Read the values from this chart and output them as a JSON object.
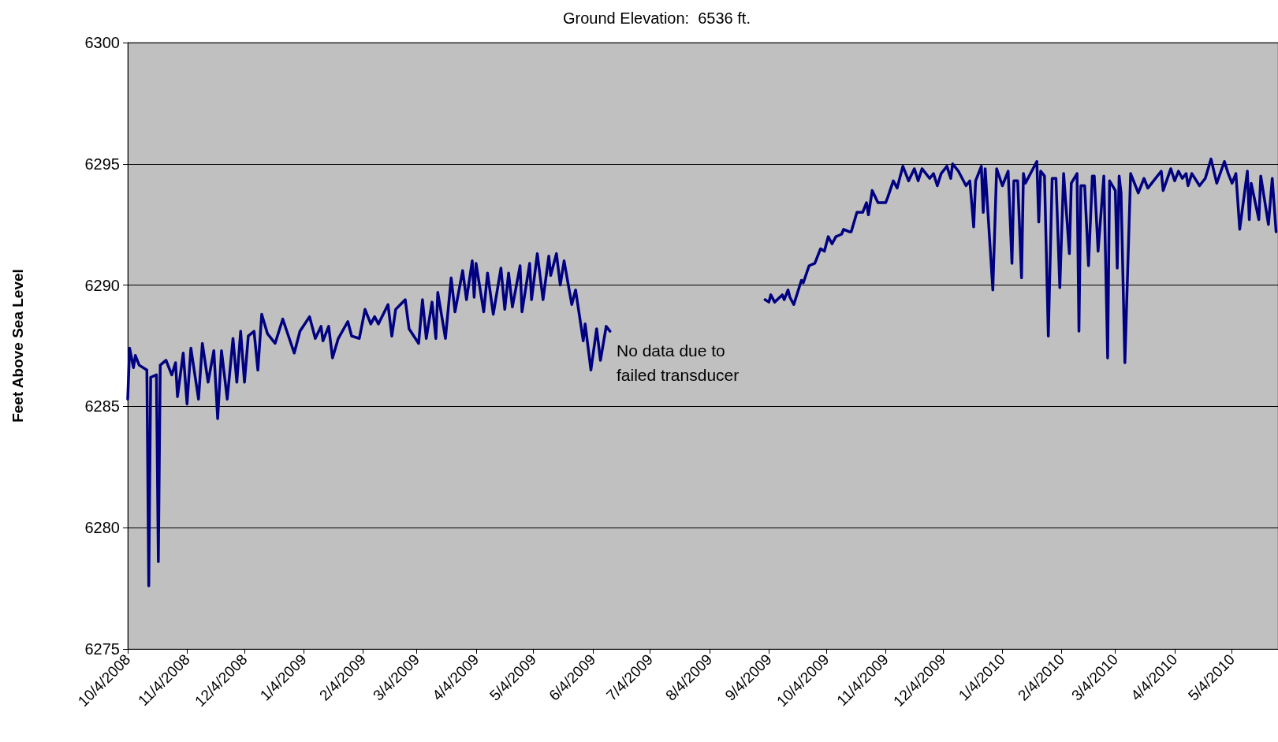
{
  "chart_data": {
    "type": "line",
    "title": "Ground Elevation:  6536 ft.",
    "ylabel": "Feet Above Sea Level",
    "annotations": [
      "No data due to failed transducer"
    ],
    "xlim": [
      "2008-10-04",
      "2010-05-28"
    ],
    "xticks": [
      {
        "value": "2008-10-04",
        "label": "10/4/2008"
      },
      {
        "value": "2008-11-04",
        "label": "11/4/2008"
      },
      {
        "value": "2008-12-04",
        "label": "12/4/2008"
      },
      {
        "value": "2009-01-04",
        "label": "1/4/2009"
      },
      {
        "value": "2009-02-04",
        "label": "2/4/2009"
      },
      {
        "value": "2009-03-04",
        "label": "3/4/2009"
      },
      {
        "value": "2009-04-04",
        "label": "4/4/2009"
      },
      {
        "value": "2009-05-04",
        "label": "5/4/2009"
      },
      {
        "value": "2009-06-04",
        "label": "6/4/2009"
      },
      {
        "value": "2009-07-04",
        "label": "7/4/2009"
      },
      {
        "value": "2009-08-04",
        "label": "8/4/2009"
      },
      {
        "value": "2009-09-04",
        "label": "9/4/2009"
      },
      {
        "value": "2009-10-04",
        "label": "10/4/2009"
      },
      {
        "value": "2009-11-04",
        "label": "11/4/2009"
      },
      {
        "value": "2009-12-04",
        "label": "12/4/2009"
      },
      {
        "value": "2010-01-04",
        "label": "1/4/2010"
      },
      {
        "value": "2010-02-04",
        "label": "2/4/2010"
      },
      {
        "value": "2010-03-04",
        "label": "3/4/2010"
      },
      {
        "value": "2010-04-04",
        "label": "4/4/2010"
      },
      {
        "value": "2010-05-04",
        "label": "5/4/2010"
      }
    ],
    "ylim": [
      6275,
      6300
    ],
    "yticks": [
      6275,
      6280,
      6285,
      6290,
      6295,
      6300
    ],
    "grid": "y",
    "marker": "none",
    "line_style": "solid",
    "series": [
      {
        "color": "#000080",
        "x": [
          "2008-10-04",
          "2008-10-05",
          "2008-10-07",
          "2008-10-08",
          "2008-10-10",
          "2008-10-14",
          "2008-10-15",
          "2008-10-16",
          "2008-10-19",
          "2008-10-20",
          "2008-10-21",
          "2008-10-24",
          "2008-10-27",
          "2008-10-29",
          "2008-10-30",
          "2008-11-02",
          "2008-11-04",
          "2008-11-06",
          "2008-11-10",
          "2008-11-12",
          "2008-11-15",
          "2008-11-18",
          "2008-11-20",
          "2008-11-22",
          "2008-11-25",
          "2008-11-28",
          "2008-11-30",
          "2008-12-02",
          "2008-12-04",
          "2008-12-06",
          "2008-12-09",
          "2008-12-11",
          "2008-12-13",
          "2008-12-16",
          "2008-12-20",
          "2008-12-24",
          "2008-12-27",
          "2008-12-30",
          "2009-01-02",
          "2009-01-07",
          "2009-01-10",
          "2009-01-13",
          "2009-01-14",
          "2009-01-17",
          "2009-01-19",
          "2009-01-22",
          "2009-01-27",
          "2009-01-29",
          "2009-02-02",
          "2009-02-05",
          "2009-02-08",
          "2009-02-10",
          "2009-02-12",
          "2009-02-17",
          "2009-02-19",
          "2009-02-21",
          "2009-02-26",
          "2009-02-28",
          "2009-03-05",
          "2009-03-07",
          "2009-03-09",
          "2009-03-12",
          "2009-03-14",
          "2009-03-15",
          "2009-03-19",
          "2009-03-22",
          "2009-03-24",
          "2009-03-28",
          "2009-03-30",
          "2009-04-02",
          "2009-04-03",
          "2009-04-04",
          "2009-04-08",
          "2009-04-10",
          "2009-04-13",
          "2009-04-17",
          "2009-04-19",
          "2009-04-21",
          "2009-04-23",
          "2009-04-27",
          "2009-04-28",
          "2009-05-02",
          "2009-05-03",
          "2009-05-06",
          "2009-05-09",
          "2009-05-12",
          "2009-05-13",
          "2009-05-16",
          "2009-05-18",
          "2009-05-20",
          "2009-05-24",
          "2009-05-26",
          "2009-05-30",
          "2009-05-31",
          "2009-06-03",
          "2009-06-06",
          "2009-06-08",
          "2009-06-11",
          "2009-06-13",
          "2009-07-20",
          "2009-09-02",
          "2009-09-04",
          "2009-09-05",
          "2009-09-07",
          "2009-09-11",
          "2009-09-12",
          "2009-09-14",
          "2009-09-15",
          "2009-09-17",
          "2009-09-21",
          "2009-09-22",
          "2009-09-25",
          "2009-09-28",
          "2009-10-01",
          "2009-10-03",
          "2009-10-05",
          "2009-10-07",
          "2009-10-09",
          "2009-10-12",
          "2009-10-13",
          "2009-10-16",
          "2009-10-17",
          "2009-10-20",
          "2009-10-23",
          "2009-10-25",
          "2009-10-26",
          "2009-10-28",
          "2009-10-31",
          "2009-11-04",
          "2009-11-05",
          "2009-11-08",
          "2009-11-10",
          "2009-11-13",
          "2009-11-16",
          "2009-11-19",
          "2009-11-21",
          "2009-11-23",
          "2009-11-27",
          "2009-11-29",
          "2009-12-01",
          "2009-12-03",
          "2009-12-06",
          "2009-12-08",
          "2009-12-09",
          "2009-12-12",
          "2009-12-16",
          "2009-12-18",
          "2009-12-20",
          "2009-12-21",
          "2009-12-24",
          "2009-12-25",
          "2009-12-26",
          "2009-12-30",
          "2010-01-01",
          "2010-01-04",
          "2010-01-07",
          "2010-01-09",
          "2010-01-10",
          "2010-01-12",
          "2010-01-14",
          "2010-01-15",
          "2010-01-16",
          "2010-01-20",
          "2010-01-22",
          "2010-01-23",
          "2010-01-24",
          "2010-01-26",
          "2010-01-28",
          "2010-01-30",
          "2010-02-01",
          "2010-02-03",
          "2010-02-05",
          "2010-02-08",
          "2010-02-09",
          "2010-02-12",
          "2010-02-13",
          "2010-02-14",
          "2010-02-16",
          "2010-02-18",
          "2010-02-20",
          "2010-02-21",
          "2010-02-23",
          "2010-02-26",
          "2010-02-28",
          "2010-03-01",
          "2010-03-04",
          "2010-03-05",
          "2010-03-06",
          "2010-03-07",
          "2010-03-09",
          "2010-03-12",
          "2010-03-16",
          "2010-03-19",
          "2010-03-21",
          "2010-03-24",
          "2010-03-28",
          "2010-03-29",
          "2010-04-02",
          "2010-04-04",
          "2010-04-06",
          "2010-04-08",
          "2010-04-10",
          "2010-04-11",
          "2010-04-13",
          "2010-04-17",
          "2010-04-20",
          "2010-04-23",
          "2010-04-26",
          "2010-04-30",
          "2010-05-02",
          "2010-05-04",
          "2010-05-06",
          "2010-05-08",
          "2010-05-12",
          "2010-05-13",
          "2010-05-14",
          "2010-05-18",
          "2010-05-19",
          "2010-05-23",
          "2010-05-25",
          "2010-05-27"
        ],
        "values": [
          6285.3,
          6287.4,
          6286.6,
          6287.1,
          6286.7,
          6286.5,
          6277.6,
          6286.2,
          6286.3,
          6278.6,
          6286.7,
          6286.9,
          6286.3,
          6286.8,
          6285.4,
          6287.2,
          6285.1,
          6287.4,
          6285.3,
          6287.6,
          6286.0,
          6287.3,
          6284.5,
          6287.3,
          6285.3,
          6287.8,
          6286.0,
          6288.1,
          6286.0,
          6287.9,
          6288.1,
          6286.5,
          6288.8,
          6288.0,
          6287.6,
          6288.6,
          6287.9,
          6287.2,
          6288.1,
          6288.7,
          6287.8,
          6288.3,
          6287.7,
          6288.3,
          6287.0,
          6287.8,
          6288.5,
          6287.9,
          6287.8,
          6289.0,
          6288.4,
          6288.7,
          6288.4,
          6289.2,
          6287.9,
          6289.0,
          6289.4,
          6288.2,
          6287.6,
          6289.4,
          6287.8,
          6289.3,
          6287.8,
          6289.7,
          6287.8,
          6290.3,
          6288.9,
          6290.6,
          6289.4,
          6291.0,
          6289.5,
          6290.9,
          6288.9,
          6290.5,
          6288.8,
          6290.7,
          6289.0,
          6290.5,
          6289.1,
          6290.8,
          6288.9,
          6290.9,
          6289.4,
          6291.3,
          6289.4,
          6291.2,
          6290.4,
          6291.3,
          6290.0,
          6291.0,
          6289.2,
          6289.8,
          6287.7,
          6288.4,
          6286.5,
          6288.2,
          6286.9,
          6288.3,
          6288.1,
          null,
          6289.4,
          6289.3,
          6289.6,
          6289.3,
          6289.6,
          6289.4,
          6289.8,
          6289.5,
          6289.2,
          6290.2,
          6290.1,
          6290.8,
          6290.9,
          6291.5,
          6291.4,
          6292.0,
          6291.7,
          6292.0,
          6292.1,
          6292.3,
          6292.2,
          6292.2,
          6293.0,
          6293.0,
          6293.4,
          6292.9,
          6293.9,
          6293.4,
          6293.4,
          6293.6,
          6294.3,
          6294.0,
          6294.9,
          6294.3,
          6294.8,
          6294.3,
          6294.8,
          6294.4,
          6294.6,
          6294.1,
          6294.6,
          6294.9,
          6294.4,
          6295.0,
          6294.7,
          6294.1,
          6294.3,
          6292.4,
          6294.3,
          6294.9,
          6293.0,
          6294.8,
          6289.8,
          6294.8,
          6294.1,
          6294.7,
          6290.9,
          6294.3,
          6294.3,
          6290.3,
          6294.6,
          6294.2,
          6294.8,
          6295.1,
          6292.6,
          6294.7,
          6294.5,
          6287.9,
          6294.4,
          6294.4,
          6289.9,
          6294.6,
          6291.3,
          6294.2,
          6294.6,
          6288.1,
          6294.1,
          6294.1,
          6290.8,
          6294.5,
          6294.5,
          6291.4,
          6294.5,
          6287.0,
          6294.3,
          6293.9,
          6290.7,
          6294.5,
          6293.8,
          6286.8,
          6294.6,
          6293.8,
          6294.4,
          6294.0,
          6294.3,
          6294.7,
          6293.9,
          6294.8,
          6294.3,
          6294.7,
          6294.4,
          6294.6,
          6294.1,
          6294.6,
          6294.1,
          6294.4,
          6295.2,
          6294.2,
          6295.1,
          6294.6,
          6294.2,
          6294.6,
          6292.3,
          6294.7,
          6292.7,
          6294.2,
          6292.7,
          6294.5,
          6292.5,
          6294.4,
          6292.2
        ]
      }
    ]
  }
}
